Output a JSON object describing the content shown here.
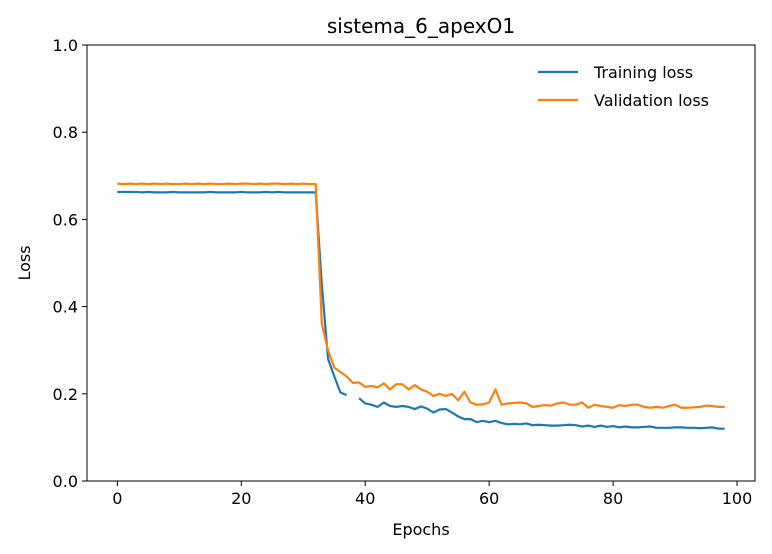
{
  "chart_data": {
    "type": "line",
    "title": "sistema_6_apexO1",
    "xlabel": "Epochs",
    "ylabel": "Loss",
    "xlim": [
      -4.9,
      102.9
    ],
    "ylim": [
      0.0,
      1.0
    ],
    "xticks": [
      "0",
      "20",
      "40",
      "60",
      "80",
      "100"
    ],
    "yticks": [
      "0.0",
      "0.2",
      "0.4",
      "0.6",
      "0.8",
      "1.0"
    ],
    "grid": false,
    "legend_position": "upper right",
    "series": [
      {
        "name": "Training loss",
        "color": "#1f77b4",
        "x": [
          0,
          1,
          2,
          3,
          4,
          5,
          6,
          7,
          8,
          9,
          10,
          11,
          12,
          13,
          14,
          15,
          16,
          17,
          18,
          19,
          20,
          21,
          22,
          23,
          24,
          25,
          26,
          27,
          28,
          29,
          30,
          31,
          32,
          33,
          34,
          35,
          36,
          37,
          38,
          39,
          40,
          41,
          42,
          43,
          44,
          45,
          46,
          47,
          48,
          49,
          50,
          51,
          52,
          53,
          54,
          55,
          56,
          57,
          58,
          59,
          60,
          61,
          62,
          63,
          64,
          65,
          66,
          67,
          68,
          69,
          70,
          71,
          72,
          73,
          74,
          75,
          76,
          77,
          78,
          79,
          80,
          81,
          82,
          83,
          84,
          85,
          86,
          87,
          88,
          89,
          90,
          91,
          92,
          93,
          94,
          95,
          96,
          97,
          98
        ],
        "y": [
          0.663,
          0.663,
          0.663,
          0.663,
          0.662,
          0.663,
          0.662,
          0.662,
          0.662,
          0.663,
          0.662,
          0.662,
          0.662,
          0.662,
          0.662,
          0.663,
          0.662,
          0.662,
          0.662,
          0.662,
          0.663,
          0.662,
          0.662,
          0.662,
          0.663,
          0.662,
          0.663,
          0.662,
          0.662,
          0.662,
          0.662,
          0.662,
          0.662,
          0.45,
          0.28,
          0.24,
          0.203,
          0.197,
          null,
          0.19,
          0.178,
          0.175,
          0.17,
          0.18,
          0.172,
          0.17,
          0.172,
          0.17,
          0.165,
          0.171,
          0.166,
          0.157,
          0.164,
          0.165,
          0.157,
          0.148,
          0.142,
          0.142,
          0.135,
          0.138,
          0.135,
          0.138,
          0.133,
          0.13,
          0.131,
          0.13,
          0.132,
          0.128,
          0.129,
          0.128,
          0.127,
          0.127,
          0.128,
          0.129,
          0.128,
          0.125,
          0.127,
          0.124,
          0.127,
          0.124,
          0.126,
          0.123,
          0.125,
          0.123,
          0.123,
          0.124,
          0.125,
          0.122,
          0.122,
          0.122,
          0.123,
          0.123,
          0.122,
          0.122,
          0.121,
          0.122,
          0.123,
          0.12,
          0.12
        ]
      },
      {
        "name": "Validation loss",
        "color": "#ff7f0e",
        "x": [
          0,
          1,
          2,
          3,
          4,
          5,
          6,
          7,
          8,
          9,
          10,
          11,
          12,
          13,
          14,
          15,
          16,
          17,
          18,
          19,
          20,
          21,
          22,
          23,
          24,
          25,
          26,
          27,
          28,
          29,
          30,
          31,
          32,
          33,
          34,
          35,
          36,
          37,
          38,
          39,
          40,
          41,
          42,
          43,
          44,
          45,
          46,
          47,
          48,
          49,
          50,
          51,
          52,
          53,
          54,
          55,
          56,
          57,
          58,
          59,
          60,
          61,
          62,
          63,
          64,
          65,
          66,
          67,
          68,
          69,
          70,
          71,
          72,
          73,
          74,
          75,
          76,
          77,
          78,
          79,
          80,
          81,
          82,
          83,
          84,
          85,
          86,
          87,
          88,
          89,
          90,
          91,
          92,
          93,
          94,
          95,
          96,
          97,
          98
        ],
        "y": [
          0.682,
          0.681,
          0.682,
          0.681,
          0.682,
          0.681,
          0.682,
          0.681,
          0.682,
          0.681,
          0.681,
          0.682,
          0.681,
          0.682,
          0.681,
          0.682,
          0.681,
          0.681,
          0.682,
          0.681,
          0.682,
          0.682,
          0.681,
          0.682,
          0.681,
          0.682,
          0.682,
          0.681,
          0.682,
          0.681,
          0.682,
          0.681,
          0.681,
          0.36,
          0.3,
          0.26,
          0.25,
          0.24,
          0.225,
          0.226,
          0.216,
          0.218,
          0.215,
          0.224,
          0.21,
          0.222,
          0.222,
          0.21,
          0.22,
          0.21,
          0.205,
          0.195,
          0.2,
          0.195,
          0.2,
          0.185,
          0.205,
          0.18,
          0.175,
          0.176,
          0.18,
          0.21,
          0.175,
          0.178,
          0.179,
          0.18,
          0.178,
          0.17,
          0.172,
          0.174,
          0.173,
          0.178,
          0.18,
          0.175,
          0.175,
          0.18,
          0.168,
          0.175,
          0.172,
          0.17,
          0.168,
          0.174,
          0.172,
          0.175,
          0.175,
          0.17,
          0.168,
          0.17,
          0.168,
          0.172,
          0.175,
          0.168,
          0.168,
          0.169,
          0.17,
          0.173,
          0.172,
          0.17,
          0.17
        ]
      }
    ]
  }
}
